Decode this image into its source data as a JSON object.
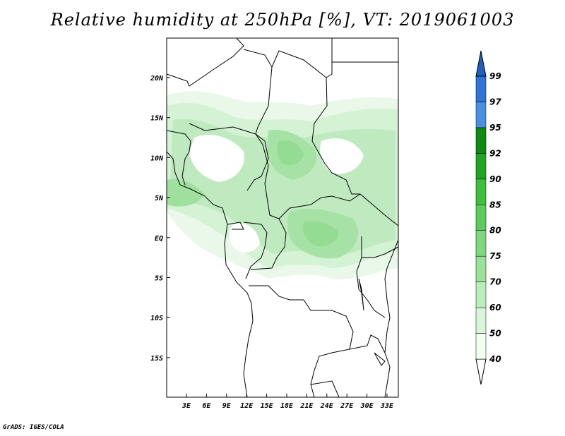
{
  "title": "Relative humidity at 250hPa [%], VT: 2019061003",
  "credit": "GrADS: IGES/COLA",
  "map": {
    "lat_labels": [
      "20N",
      "15N",
      "10N",
      "5N",
      "EQ",
      "5S",
      "10S",
      "15S"
    ],
    "lon_labels": [
      "3E",
      "6E",
      "9E",
      "12E",
      "15E",
      "18E",
      "21E",
      "24E",
      "27E",
      "30E",
      "33E"
    ]
  },
  "colorbar": {
    "levels": [
      "40",
      "50",
      "60",
      "70",
      "75",
      "80",
      "85",
      "90",
      "92",
      "95",
      "97",
      "99"
    ],
    "colors": [
      "#f0fff0",
      "#d8f5d8",
      "#b9edb9",
      "#99e399",
      "#7ed87e",
      "#5ccd5c",
      "#3cbf3c",
      "#1fa51f",
      "#0f8c0f",
      "#4a90e2",
      "#2f74d6",
      "#1f5fc0"
    ]
  },
  "chart_data": {
    "type": "heatmap",
    "title": "Relative humidity at 250hPa [%], VT: 2019061003",
    "variable": "Relative humidity",
    "units": "%",
    "pressure_level": "250hPa",
    "valid_time": "2019061003",
    "lat_ticks": [
      "20N",
      "15N",
      "10N",
      "5N",
      "EQ",
      "5S",
      "10S",
      "15S"
    ],
    "lon_ticks": [
      "3E",
      "6E",
      "9E",
      "12E",
      "15E",
      "18E",
      "21E",
      "24E",
      "27E",
      "30E",
      "33E"
    ],
    "contour_levels": [
      40,
      50,
      60,
      70,
      75,
      80,
      85,
      90,
      92,
      95,
      97,
      99
    ]
  }
}
